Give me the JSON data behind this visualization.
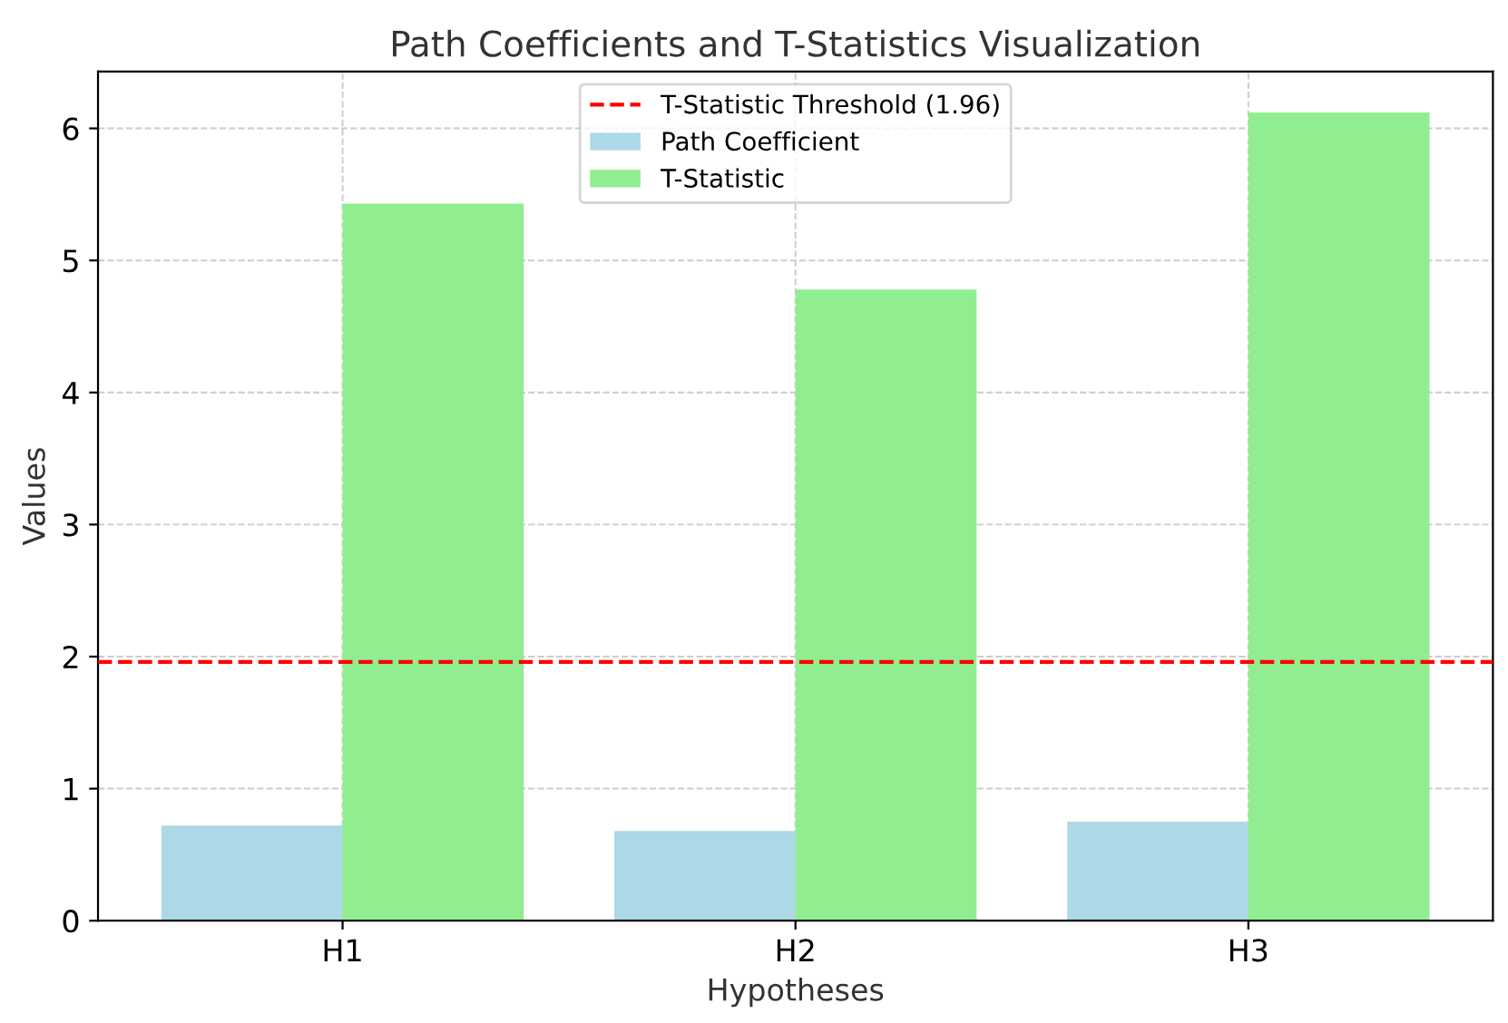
{
  "chart_data": {
    "type": "bar",
    "title": "Path Coefficients and T-Statistics Visualization",
    "xlabel": "Hypotheses",
    "ylabel": "Values",
    "categories": [
      "H1",
      "H2",
      "H3"
    ],
    "series": [
      {
        "name": "Path Coefficient",
        "color": "#add8e6",
        "values": [
          0.72,
          0.68,
          0.75
        ]
      },
      {
        "name": "T-Statistic",
        "color": "#90ee90",
        "values": [
          5.43,
          4.78,
          6.12
        ]
      }
    ],
    "ref_lines": [
      {
        "axis": "y",
        "value": 1.96,
        "label": "T-Statistic Threshold (1.96)",
        "color": "#ff0000",
        "line_style": "dashed"
      }
    ],
    "ylim": [
      0,
      6.43
    ],
    "yticks": [
      0,
      1,
      2,
      3,
      4,
      5,
      6
    ],
    "grid": true,
    "legend": "top"
  }
}
